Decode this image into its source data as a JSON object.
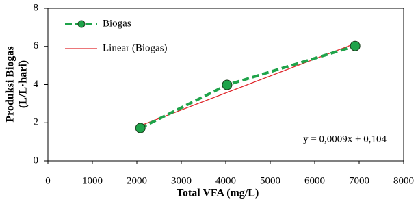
{
  "chart_data": {
    "type": "line",
    "xlabel": "Total VFA (mg/L)",
    "ylabel": [
      "Produksi Biogas",
      "(L/L·hari)"
    ],
    "annotation": "y = 0,0009x + 0,104",
    "xlim": [
      0,
      8000
    ],
    "xticks": [
      0,
      1000,
      2000,
      3000,
      4000,
      5000,
      6000,
      7000,
      8000
    ],
    "ylim": [
      0,
      8
    ],
    "yticks": [
      0,
      2,
      4,
      6,
      8
    ],
    "legend": "top-left",
    "series": [
      {
        "name": "Biogas",
        "color": "#1fa34a",
        "line_style": "dashed",
        "marker": "circle",
        "x": [
          2080,
          4030,
          6910
        ],
        "values": [
          1.72,
          3.98,
          6.02
        ]
      },
      {
        "name": "Linear (Biogas)",
        "color": "#e0262b",
        "line_style": "solid",
        "x": [
          2080,
          6910
        ],
        "values": [
          1.85,
          6.15
        ]
      }
    ]
  }
}
